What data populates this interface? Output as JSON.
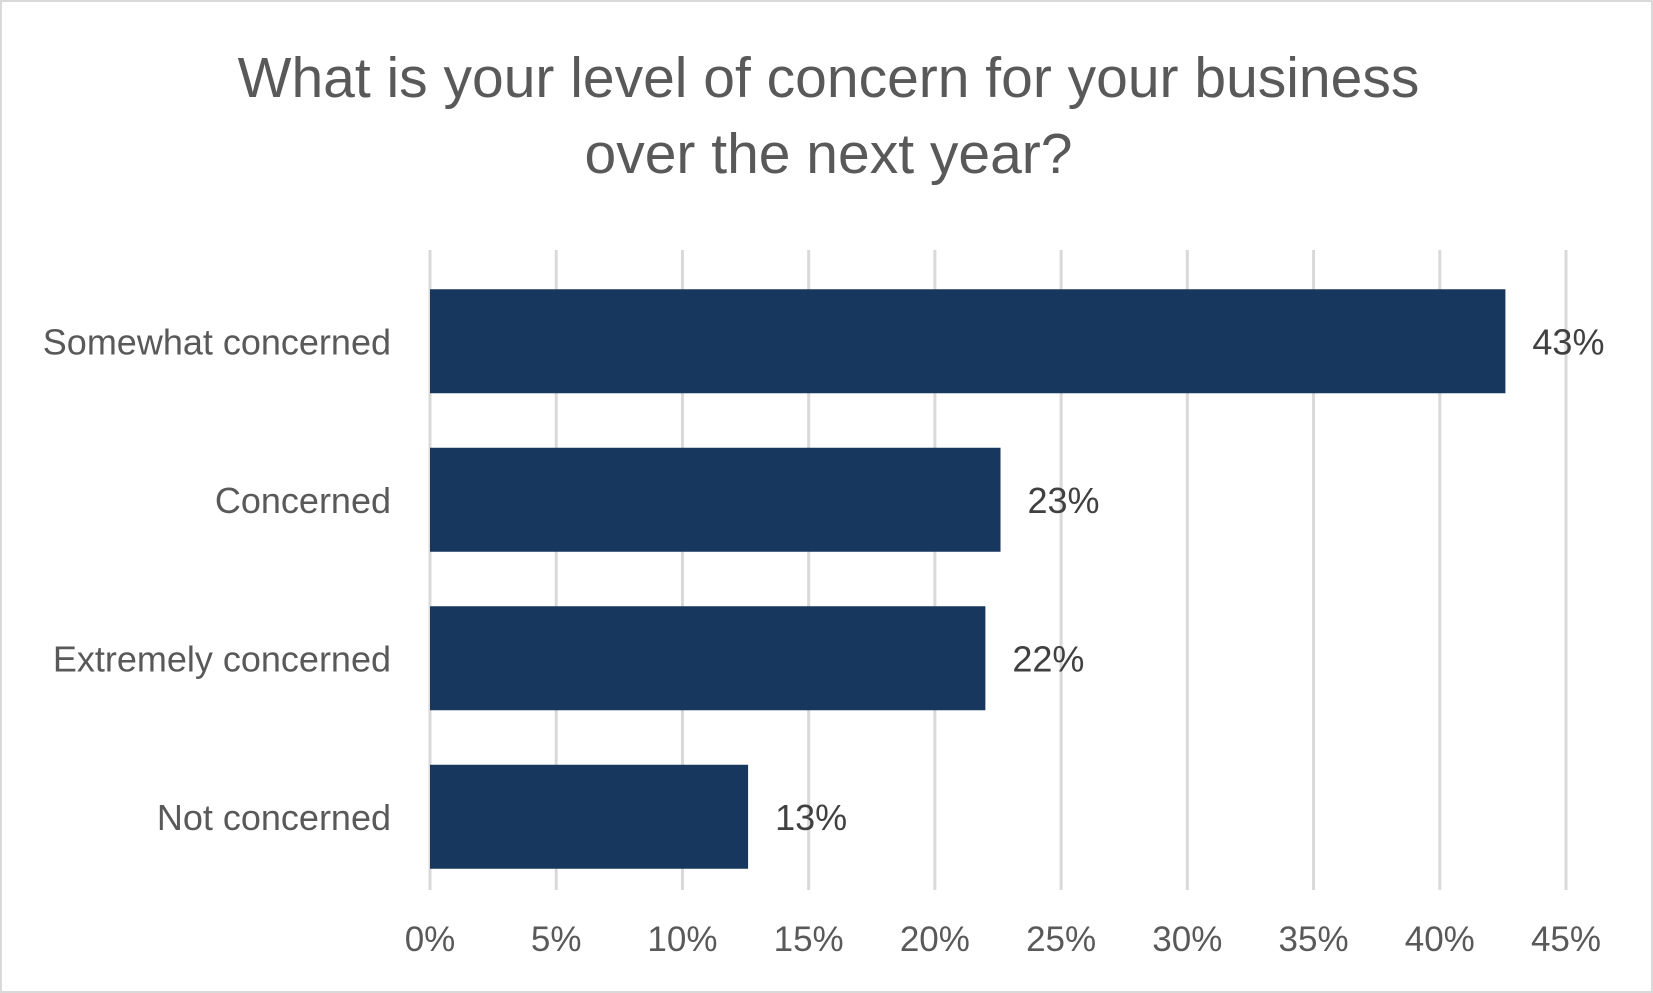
{
  "chart_data": {
    "type": "bar",
    "orientation": "horizontal",
    "title_lines": [
      "What is your level of concern for your business",
      "over the next year?"
    ],
    "categories": [
      "Somewhat concerned",
      "Concerned",
      "Extremely concerned",
      "Not concerned"
    ],
    "values": [
      42.6,
      22.6,
      22.0,
      12.6
    ],
    "data_labels": [
      "43%",
      "23%",
      "22%",
      "13%"
    ],
    "xlim": [
      0,
      45
    ],
    "ticks": [
      0,
      5,
      10,
      15,
      20,
      25,
      30,
      35,
      40,
      45
    ],
    "tick_labels": [
      "0%",
      "5%",
      "10%",
      "15%",
      "20%",
      "25%",
      "30%",
      "35%",
      "40%",
      "45%"
    ],
    "xlabel": "",
    "ylabel": "",
    "grid": true,
    "legend": "none",
    "bar_color": "#17375e",
    "grid_color": "#d9d9d9",
    "text_color": "#595959"
  }
}
